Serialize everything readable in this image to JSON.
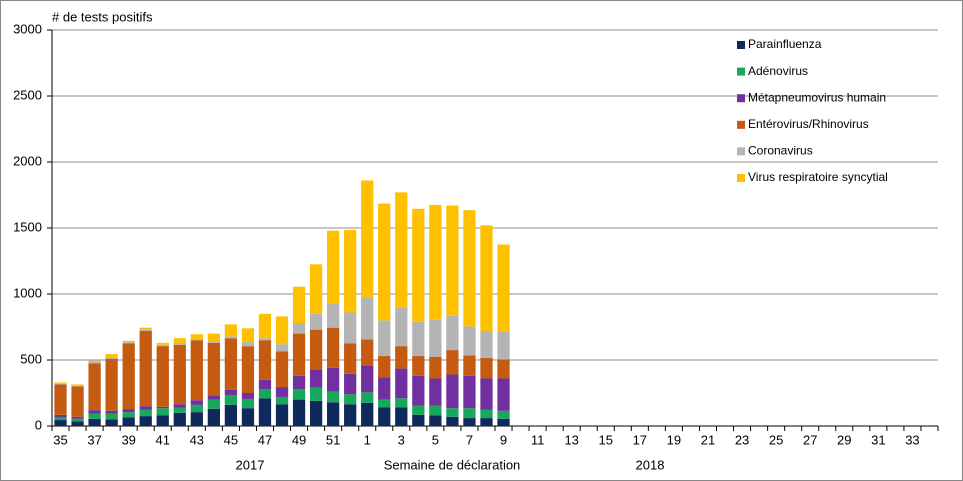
{
  "chart_data": {
    "type": "stacked-bar",
    "y_label": "# de tests positifs",
    "x_label": "Semaine de déclaration",
    "annotations": [
      "2017",
      "2018"
    ],
    "categories": [
      "35",
      null,
      "37",
      null,
      "39",
      null,
      "41",
      null,
      "43",
      null,
      "45",
      null,
      "47",
      null,
      "49",
      null,
      "51",
      null,
      "1",
      null,
      "3",
      null,
      "5",
      null,
      "7",
      null,
      "9",
      null,
      "11",
      null,
      "13",
      null,
      "15",
      null,
      "17",
      null,
      "19",
      null,
      "21",
      null,
      "23",
      null,
      "25",
      null,
      "27",
      null,
      "29",
      null,
      "31",
      null,
      "33",
      null
    ],
    "ylim": [
      0,
      3000
    ],
    "yticks": [
      0,
      500,
      1000,
      1500,
      2000,
      2500,
      3000
    ],
    "grid": true,
    "legend": "upper right",
    "series": [
      {
        "name": "Parainfluenza",
        "color": "#0e2a5c",
        "values": [
          45,
          35,
          55,
          50,
          65,
          75,
          80,
          100,
          105,
          130,
          160,
          135,
          210,
          165,
          200,
          190,
          180,
          165,
          175,
          140,
          140,
          85,
          80,
          70,
          60,
          60,
          55,
          null,
          null,
          null,
          null,
          null,
          null,
          null,
          null,
          null,
          null,
          null,
          null,
          null,
          null,
          null,
          null,
          null,
          null,
          null,
          null,
          null,
          null,
          null,
          null,
          null
        ]
      },
      {
        "name": "Adénovirus",
        "color": "#17a85c",
        "values": [
          20,
          20,
          40,
          45,
          40,
          50,
          55,
          40,
          55,
          70,
          75,
          70,
          70,
          55,
          80,
          100,
          80,
          75,
          80,
          60,
          70,
          70,
          75,
          65,
          75,
          65,
          60,
          null,
          null,
          null,
          null,
          null,
          null,
          null,
          null,
          null,
          null,
          null,
          null,
          null,
          null,
          null,
          null,
          null,
          null,
          null,
          null,
          null,
          null,
          null,
          null,
          null
        ]
      },
      {
        "name": "Métapneumovirus humain",
        "color": "#7030a0",
        "values": [
          20,
          15,
          25,
          20,
          20,
          25,
          10,
          25,
          35,
          30,
          40,
          45,
          70,
          75,
          100,
          140,
          180,
          155,
          205,
          170,
          225,
          225,
          205,
          255,
          245,
          235,
          245,
          null,
          null,
          null,
          null,
          null,
          null,
          null,
          null,
          null,
          null,
          null,
          null,
          null,
          null,
          null,
          null,
          null,
          null,
          null,
          null,
          null,
          null,
          null,
          null,
          null
        ]
      },
      {
        "name": "Entérovirus/Rhinovirus",
        "color": "#c55a11",
        "values": [
          230,
          230,
          355,
          395,
          500,
          570,
          460,
          450,
          455,
          400,
          390,
          355,
          300,
          270,
          320,
          300,
          305,
          230,
          195,
          160,
          170,
          150,
          165,
          185,
          155,
          155,
          145,
          null,
          null,
          null,
          null,
          null,
          null,
          null,
          null,
          null,
          null,
          null,
          null,
          null,
          null,
          null,
          null,
          null,
          null,
          null,
          null,
          null,
          null,
          null,
          null,
          null
        ]
      },
      {
        "name": "Coronavirus",
        "color": "#b4b4b4",
        "values": [
          5,
          5,
          10,
          10,
          10,
          10,
          10,
          10,
          10,
          10,
          15,
          30,
          15,
          55,
          80,
          120,
          180,
          235,
          320,
          270,
          290,
          260,
          280,
          260,
          220,
          205,
          210,
          null,
          null,
          null,
          null,
          null,
          null,
          null,
          null,
          null,
          null,
          null,
          null,
          null,
          null,
          null,
          null,
          null,
          null,
          null,
          null,
          null,
          null,
          null,
          null,
          null
        ]
      },
      {
        "name": "Virus respiratoire syncytial",
        "color": "#ffc000",
        "values": [
          10,
          10,
          10,
          25,
          10,
          15,
          15,
          40,
          35,
          60,
          90,
          105,
          185,
          210,
          275,
          375,
          555,
          625,
          885,
          885,
          875,
          855,
          870,
          835,
          880,
          800,
          660,
          null,
          null,
          null,
          null,
          null,
          null,
          null,
          null,
          null,
          null,
          null,
          null,
          null,
          null,
          null,
          null,
          null,
          null,
          null,
          null,
          null,
          null,
          null,
          null,
          null
        ]
      }
    ]
  }
}
